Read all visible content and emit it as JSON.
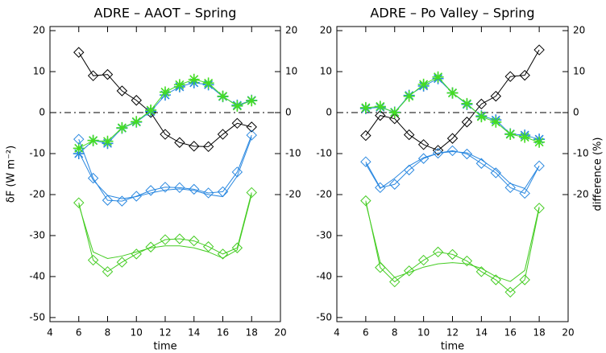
{
  "chart_data": [
    {
      "type": "line",
      "title": "ADRE – AAOT – Spring",
      "xlabel": "time",
      "ylabel": "δF (W m⁻²)",
      "xlim": [
        4,
        20
      ],
      "xticks": [
        4,
        6,
        8,
        10,
        12,
        14,
        16,
        18,
        20
      ],
      "ylim": [
        -51,
        21
      ],
      "yticks": [
        20,
        10,
        0,
        -10,
        -20,
        -30,
        -40,
        -50
      ],
      "y2lim": [
        -51,
        21
      ],
      "y2ticks": [
        20,
        10,
        0,
        -10,
        -20
      ],
      "zero_line": true,
      "x": [
        6,
        7,
        8,
        9,
        10,
        11,
        12,
        13,
        14,
        15,
        16,
        17,
        18
      ],
      "series": [
        {
          "color": "#000000",
          "marker": "diamond",
          "axis": "y2",
          "values": [
            14.7,
            9,
            9.3,
            5.3,
            3,
            0,
            -5.3,
            -7.3,
            -8.2,
            -8.3,
            -5.3,
            -2.6,
            -3.5
          ]
        },
        {
          "color": "#2a88e0",
          "marker": "star",
          "axis": "y2",
          "values": [
            -10,
            -6.8,
            -7.5,
            -3.8,
            -2.3,
            0.3,
            4.3,
            6.3,
            7.3,
            6.8,
            3.9,
            1.8,
            3.0
          ]
        },
        {
          "color": "#44dd22",
          "marker": "star",
          "axis": "y2",
          "values": [
            -8.7,
            -6.8,
            -7,
            -3.7,
            -2.2,
            0.6,
            5.0,
            6.8,
            8.1,
            7.2,
            4.0,
            1.6,
            2.9
          ]
        },
        {
          "color": "#2a88e0",
          "marker": "diamond",
          "values": [
            -6.5,
            -16,
            -21.4,
            -21.6,
            -20.4,
            -19,
            -18.2,
            -18.3,
            -18.7,
            -19.6,
            -19.3,
            -14.5,
            -5.5
          ]
        },
        {
          "color": "#2a88e0",
          "marker": "none",
          "values": [
            -9.6,
            -16.5,
            -20.2,
            -21,
            -20.5,
            -19.6,
            -18.9,
            -18.6,
            -19,
            -20,
            -20.5,
            -15.5,
            -6
          ]
        },
        {
          "color": "#44cc22",
          "marker": "diamond",
          "values": [
            -22,
            -36,
            -38.8,
            -36.5,
            -34.5,
            -32.8,
            -31,
            -30.8,
            -31.3,
            -32.7,
            -34.5,
            -33,
            -19.5
          ]
        },
        {
          "color": "#44cc22",
          "marker": "none",
          "values": [
            -22.5,
            -34,
            -35.6,
            -35,
            -34,
            -33,
            -32.5,
            -32.5,
            -33,
            -34,
            -35.5,
            -33.5,
            -20
          ]
        }
      ]
    },
    {
      "type": "line",
      "title": "ADRE – Po Valley – Spring",
      "xlabel": "time",
      "y2label": "difference (%)",
      "xlim": [
        4,
        20
      ],
      "xticks": [
        4,
        6,
        8,
        10,
        12,
        14,
        16,
        18,
        20
      ],
      "ylim": [
        -51,
        21
      ],
      "yticks": [
        20,
        10,
        0,
        -10,
        -20,
        -30,
        -40,
        -50
      ],
      "y2lim": [
        -51,
        21
      ],
      "y2ticks": [
        20,
        10,
        0,
        -10,
        -20
      ],
      "zero_line": true,
      "x": [
        6,
        7,
        8,
        9,
        10,
        11,
        12,
        13,
        14,
        15,
        16,
        17,
        18
      ],
      "series": [
        {
          "color": "#000000",
          "marker": "diamond",
          "axis": "y2",
          "values": [
            -5.6,
            -0.7,
            -1.5,
            -5.4,
            -7.8,
            -9.2,
            -6.3,
            -2.3,
            2.1,
            4.0,
            8.8,
            9.1,
            15.3
          ]
        },
        {
          "color": "#2a88e0",
          "marker": "star",
          "axis": "y2",
          "values": [
            1.0,
            1.3,
            0.1,
            4.2,
            6.5,
            8.3,
            4.8,
            2.0,
            -0.8,
            -1.8,
            -5.2,
            -5.5,
            -6.5
          ]
        },
        {
          "color": "#44dd22",
          "marker": "star",
          "axis": "y2",
          "values": [
            1.2,
            1.5,
            0.0,
            4.0,
            6.9,
            8.7,
            4.8,
            2.2,
            -1.0,
            -2.3,
            -5.3,
            -6.0,
            -7.2
          ]
        },
        {
          "color": "#2a88e0",
          "marker": "diamond",
          "values": [
            -12,
            -18.3,
            -17.5,
            -14,
            -11.2,
            -9.9,
            -9.3,
            -10.1,
            -12.4,
            -14.7,
            -18.3,
            -19.7,
            -13
          ]
        },
        {
          "color": "#2a88e0",
          "marker": "none",
          "values": [
            -12.5,
            -18.5,
            -16,
            -13,
            -11,
            -9.9,
            -9.5,
            -9.8,
            -11.5,
            -14,
            -17.3,
            -18.5,
            -13
          ]
        },
        {
          "color": "#44cc22",
          "marker": "diamond",
          "values": [
            -21.5,
            -37.8,
            -41.3,
            -38.6,
            -36,
            -34,
            -34.6,
            -36.2,
            -38.8,
            -40.8,
            -43.8,
            -40.8,
            -23.3
          ]
        },
        {
          "color": "#44cc22",
          "marker": "none",
          "values": [
            -22,
            -36.5,
            -40.2,
            -39,
            -37.7,
            -36.9,
            -36.6,
            -36.9,
            -38,
            -40,
            -41.2,
            -38.5,
            -23
          ]
        }
      ]
    }
  ]
}
